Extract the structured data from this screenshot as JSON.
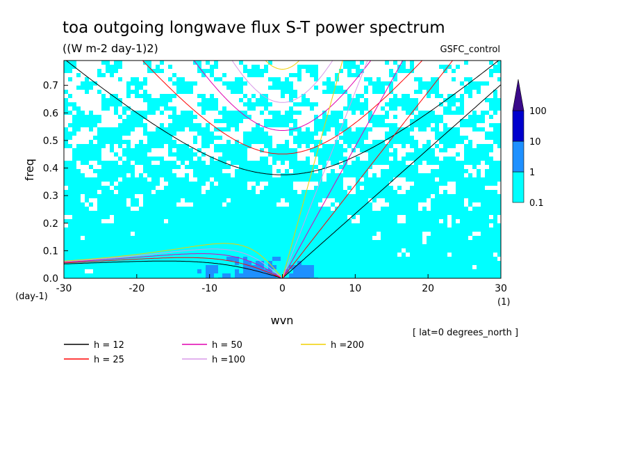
{
  "chart_data": {
    "type": "heatmap",
    "title": "toa outgoing longwave flux S-T power spectrum",
    "subtitle": "((W m-2 day-1)2)",
    "run_label": "GSFC_control",
    "xlabel": "wvn",
    "ylabel": "freq",
    "x_unit": "(1)",
    "y_unit": "(day-1)",
    "xlim": [
      -30,
      30
    ],
    "ylim": [
      0,
      0.79
    ],
    "x_ticks": [
      "-30",
      "-20",
      "-10",
      "0",
      "10",
      "20",
      "30"
    ],
    "y_ticks": [
      "0.0",
      "0.1",
      "0.2",
      "0.3",
      "0.4",
      "0.5",
      "0.6",
      "0.7"
    ],
    "annotation": "[ lat=0 degrees_north ]",
    "colorbar": {
      "levels": [
        "0.1",
        "1",
        "10",
        "100"
      ],
      "colors": [
        "#00ffff",
        "#1e90ff",
        "#0000cd",
        "#3a0a8a"
      ],
      "scale": "log"
    },
    "dispersion_curves": [
      {
        "label": "h = 12",
        "value": 12,
        "color": "#000000"
      },
      {
        "label": "h = 25",
        "value": 25,
        "color": "#ff0000"
      },
      {
        "label": "h = 50",
        "value": 50,
        "color": "#e000b0"
      },
      {
        "label": "h =100",
        "value": 100,
        "color": "#d898e8"
      },
      {
        "label": "h =200",
        "value": 200,
        "color": "#f0d000"
      }
    ],
    "grid": false
  }
}
